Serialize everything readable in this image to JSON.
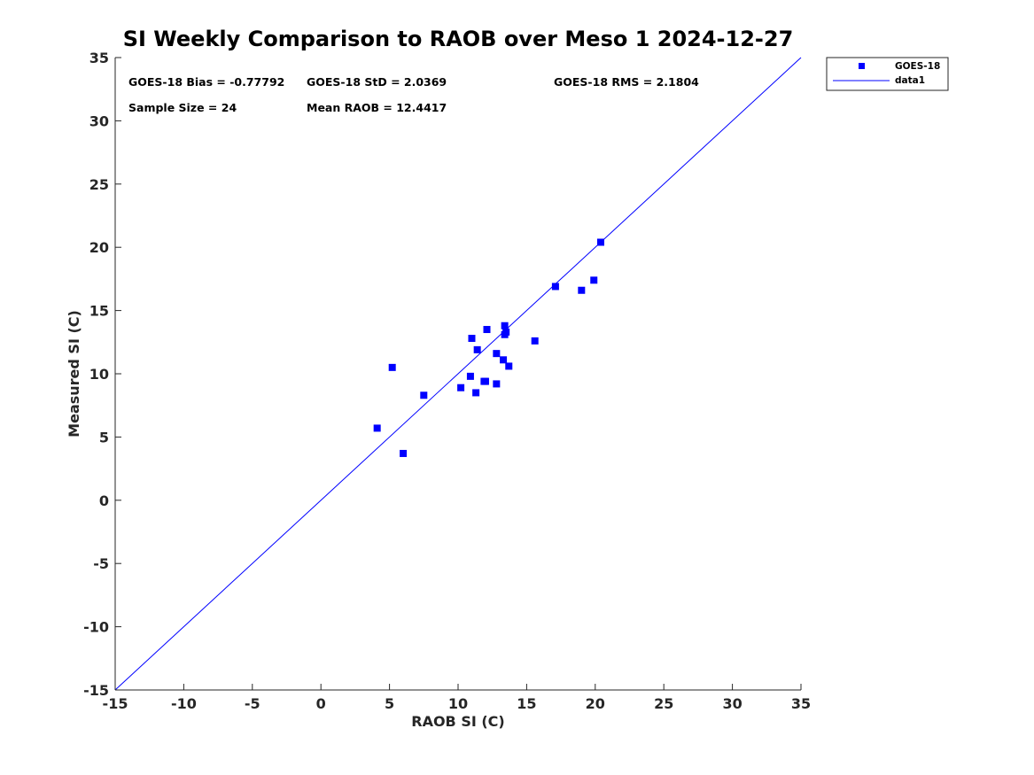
{
  "chart_data": {
    "type": "scatter",
    "title": "SI Weekly Comparison to RAOB over Meso 1 2024-12-27",
    "xlabel": "RAOB SI (C)",
    "ylabel": "Measured SI (C)",
    "xlim": [
      -15,
      35
    ],
    "ylim": [
      -15,
      35
    ],
    "xticks": [
      "-15",
      "-10",
      "-5",
      "0",
      "5",
      "10",
      "15",
      "20",
      "25",
      "30",
      "35"
    ],
    "yticks": [
      "-15",
      "-10",
      "-5",
      "0",
      "5",
      "10",
      "15",
      "20",
      "25",
      "30",
      "35"
    ],
    "grid": false,
    "legend_position": "outside-top-right",
    "stats": {
      "bias": "GOES-18 Bias = -0.77792",
      "std": "GOES-18 StD = 2.0369",
      "rms": "GOES-18 RMS = 2.1804",
      "sample": "Sample Size = 24",
      "mean": "Mean RAOB = 12.4417"
    },
    "series": [
      {
        "name": "GOES-18",
        "marker": "square",
        "color": "#0000ff",
        "points": [
          [
            4.1,
            5.7
          ],
          [
            5.2,
            10.5
          ],
          [
            6.0,
            3.7
          ],
          [
            7.5,
            8.3
          ],
          [
            10.2,
            8.9
          ],
          [
            10.9,
            9.8
          ],
          [
            11.0,
            12.8
          ],
          [
            11.3,
            8.5
          ],
          [
            11.4,
            11.9
          ],
          [
            11.9,
            9.4
          ],
          [
            12.0,
            9.4
          ],
          [
            12.1,
            13.5
          ],
          [
            12.8,
            11.6
          ],
          [
            12.8,
            9.2
          ],
          [
            13.3,
            11.1
          ],
          [
            13.4,
            13.8
          ],
          [
            13.4,
            13.1
          ],
          [
            13.5,
            13.3
          ],
          [
            13.7,
            10.6
          ],
          [
            15.6,
            12.6
          ],
          [
            17.1,
            16.9
          ],
          [
            19.0,
            16.6
          ],
          [
            19.9,
            17.4
          ],
          [
            20.4,
            20.4
          ]
        ]
      },
      {
        "name": "data1",
        "type": "line",
        "color": "#0000ff",
        "points": [
          [
            -15,
            -15
          ],
          [
            35,
            35
          ]
        ]
      }
    ]
  }
}
